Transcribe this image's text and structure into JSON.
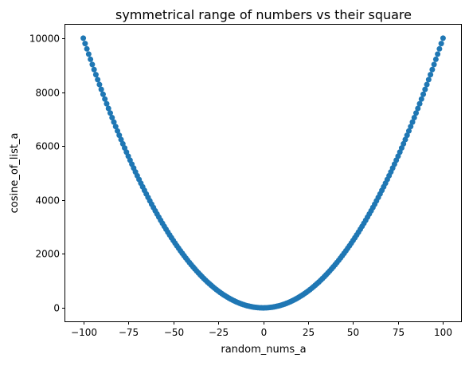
{
  "chart_data": {
    "type": "scatter",
    "title": "symmetrical range of numbers vs their square",
    "xlabel": "random_nums_a",
    "ylabel": "cosine_of_list_a",
    "xlim": [
      -110,
      110
    ],
    "ylim": [
      -500,
      10500
    ],
    "x_ticks": [
      -100,
      -75,
      -50,
      -25,
      0,
      25,
      50,
      75,
      100
    ],
    "x_tick_labels": [
      "−100",
      "−75",
      "−50",
      "−25",
      "0",
      "25",
      "50",
      "75",
      "100"
    ],
    "y_ticks": [
      0,
      2000,
      4000,
      6000,
      8000,
      10000
    ],
    "y_tick_labels": [
      "0",
      "2000",
      "4000",
      "6000",
      "8000",
      "10000"
    ],
    "grid": false,
    "legend": "none",
    "marker_color": "#1f77b4",
    "series": [
      {
        "x": [
          -100,
          -99,
          -98,
          -97,
          -96,
          -95,
          -94,
          -93,
          -92,
          -91,
          -90,
          -89,
          -88,
          -87,
          -86,
          -85,
          -84,
          -83,
          -82,
          -81,
          -80,
          -79,
          -78,
          -77,
          -76,
          -75,
          -74,
          -73,
          -72,
          -71,
          -70,
          -69,
          -68,
          -67,
          -66,
          -65,
          -64,
          -63,
          -62,
          -61,
          -60,
          -59,
          -58,
          -57,
          -56,
          -55,
          -54,
          -53,
          -52,
          -51,
          -50,
          -49,
          -48,
          -47,
          -46,
          -45,
          -44,
          -43,
          -42,
          -41,
          -40,
          -39,
          -38,
          -37,
          -36,
          -35,
          -34,
          -33,
          -32,
          -31,
          -30,
          -29,
          -28,
          -27,
          -26,
          -25,
          -24,
          -23,
          -22,
          -21,
          -20,
          -19,
          -18,
          -17,
          -16,
          -15,
          -14,
          -13,
          -12,
          -11,
          -10,
          -9,
          -8,
          -7,
          -6,
          -5,
          -4,
          -3,
          -2,
          -1,
          0,
          1,
          2,
          3,
          4,
          5,
          6,
          7,
          8,
          9,
          10,
          11,
          12,
          13,
          14,
          15,
          16,
          17,
          18,
          19,
          20,
          21,
          22,
          23,
          24,
          25,
          26,
          27,
          28,
          29,
          30,
          31,
          32,
          33,
          34,
          35,
          36,
          37,
          38,
          39,
          40,
          41,
          42,
          43,
          44,
          45,
          46,
          47,
          48,
          49,
          50,
          51,
          52,
          53,
          54,
          55,
          56,
          57,
          58,
          59,
          60,
          61,
          62,
          63,
          64,
          65,
          66,
          67,
          68,
          69,
          70,
          71,
          72,
          73,
          74,
          75,
          76,
          77,
          78,
          79,
          80,
          81,
          82,
          83,
          84,
          85,
          86,
          87,
          88,
          89,
          90,
          91,
          92,
          93,
          94,
          95,
          96,
          97,
          98,
          99,
          100
        ],
        "y": [
          10000,
          9801,
          9604,
          9409,
          9216,
          9025,
          8836,
          8649,
          8464,
          8281,
          8100,
          7921,
          7744,
          7569,
          7396,
          7225,
          7056,
          6889,
          6724,
          6561,
          6400,
          6241,
          6084,
          5929,
          5776,
          5625,
          5476,
          5329,
          5184,
          5041,
          4900,
          4761,
          4624,
          4489,
          4356,
          4225,
          4096,
          3969,
          3844,
          3721,
          3600,
          3481,
          3364,
          3249,
          3136,
          3025,
          2916,
          2809,
          2704,
          2601,
          2500,
          2401,
          2304,
          2209,
          2116,
          2025,
          1936,
          1849,
          1764,
          1681,
          1600,
          1521,
          1444,
          1369,
          1296,
          1225,
          1156,
          1089,
          1024,
          961,
          900,
          841,
          784,
          729,
          676,
          625,
          576,
          529,
          484,
          441,
          400,
          361,
          324,
          289,
          256,
          225,
          196,
          169,
          144,
          121,
          100,
          81,
          64,
          49,
          36,
          25,
          16,
          9,
          4,
          1,
          0,
          1,
          4,
          9,
          16,
          25,
          36,
          49,
          64,
          81,
          100,
          121,
          144,
          169,
          196,
          225,
          256,
          289,
          324,
          361,
          400,
          441,
          484,
          529,
          576,
          625,
          676,
          729,
          784,
          841,
          900,
          961,
          1024,
          1089,
          1156,
          1225,
          1296,
          1369,
          1444,
          1521,
          1600,
          1681,
          1764,
          1849,
          1936,
          2025,
          2116,
          2209,
          2304,
          2401,
          2500,
          2601,
          2704,
          2809,
          2916,
          3025,
          3136,
          3249,
          3364,
          3481,
          3600,
          3721,
          3844,
          3969,
          4096,
          4225,
          4356,
          4489,
          4624,
          4761,
          4900,
          5041,
          5184,
          5329,
          5476,
          5625,
          5776,
          5929,
          6084,
          6241,
          6400,
          6561,
          6724,
          6889,
          7056,
          7225,
          7396,
          7569,
          7744,
          7921,
          8100,
          8281,
          8464,
          8649,
          8836,
          9025,
          9216,
          9409,
          9604,
          9801,
          10000
        ]
      }
    ]
  }
}
